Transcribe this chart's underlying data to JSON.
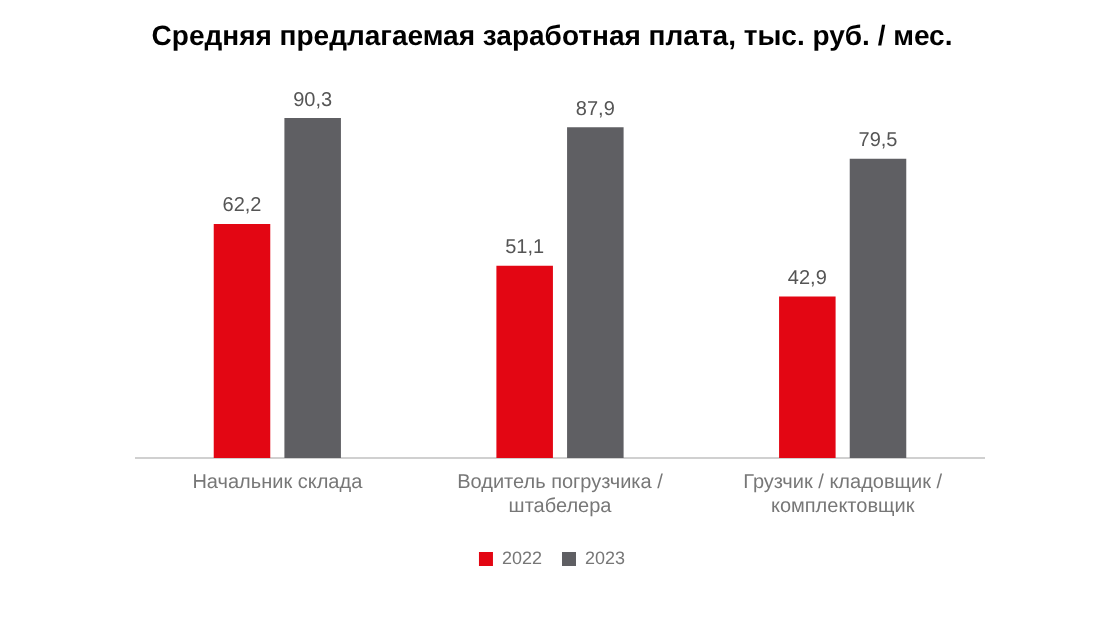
{
  "chart_data": {
    "type": "bar",
    "title": "Средняя предлагаемая заработная плата, тыс. руб. / мес.",
    "categories": [
      "Начальник склада",
      "Водитель погрузчика / штабелера",
      "Грузчик / кладовщик / комплектовщик"
    ],
    "series": [
      {
        "name": "2022",
        "color": "#e30613",
        "values": [
          62.2,
          51.1,
          42.9
        ],
        "value_labels": [
          "62,2",
          "51,1",
          "42,9"
        ]
      },
      {
        "name": "2023",
        "color": "#5f5f63",
        "values": [
          90.3,
          87.9,
          79.5
        ],
        "value_labels": [
          "90,3",
          "87,9",
          "79,5"
        ]
      }
    ],
    "relative": false,
    "grid": false,
    "legend": "bottom"
  }
}
